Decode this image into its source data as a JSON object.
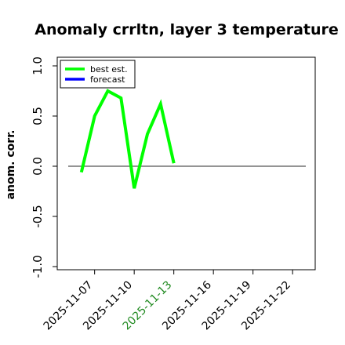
{
  "chart_data": {
    "type": "line",
    "title": "Anomaly crrltn, layer 3 temperature",
    "xlabel": "",
    "ylabel": "anom. corr.",
    "ylim": [
      -1.0,
      1.0
    ],
    "y_ticks": [
      "-1.0",
      "-0.5",
      "0.0",
      "0.5",
      "1.0"
    ],
    "y_tick_values": [
      -1.0,
      -0.5,
      0.0,
      0.5,
      1.0
    ],
    "x_ticks": [
      "2025-11-07",
      "2025-11-10",
      "2025-11-13",
      "2025-11-16",
      "2025-11-19",
      "2025-11-22"
    ],
    "x_tick_highlight": "2025-11-13",
    "x_tick_highlight_color": "#228b22",
    "x_range": [
      "2025-11-05",
      "2025-11-23"
    ],
    "grid": false,
    "zero_line": true,
    "legend_placement": "top-left",
    "series": [
      {
        "name": "best est.",
        "color": "#00ff00",
        "x": [
          "2025-11-06",
          "2025-11-07",
          "2025-11-08",
          "2025-11-09",
          "2025-11-10",
          "2025-11-11",
          "2025-11-12",
          "2025-11-13"
        ],
        "values": [
          -0.06,
          0.5,
          0.75,
          0.68,
          -0.22,
          0.32,
          0.62,
          0.03
        ]
      },
      {
        "name": "forecast",
        "color": "#0000ff",
        "x": [],
        "values": []
      }
    ]
  }
}
